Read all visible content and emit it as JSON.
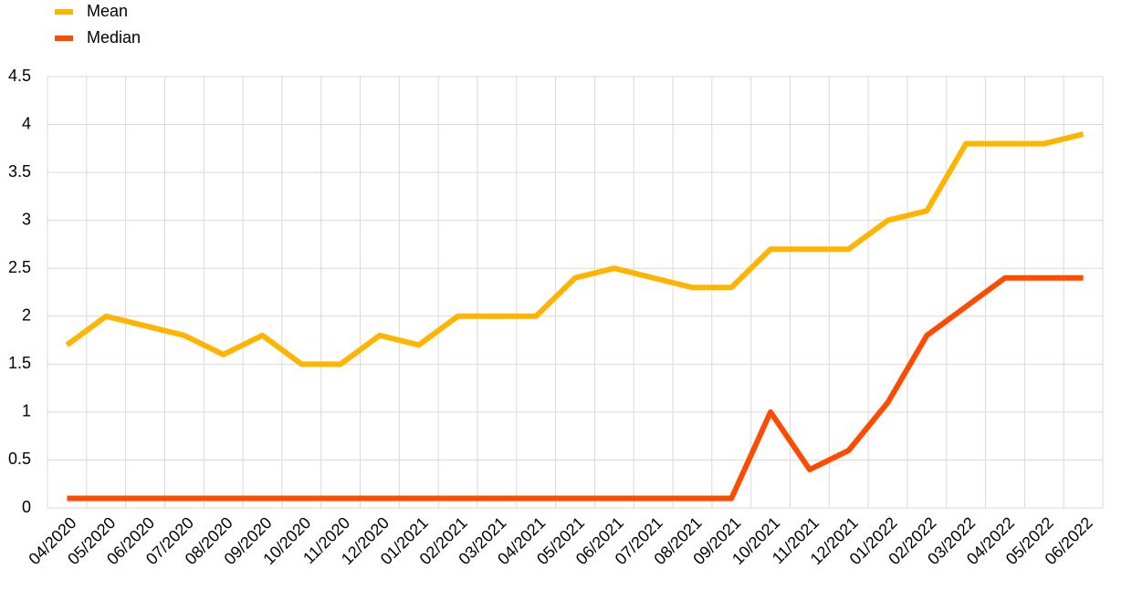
{
  "chart_data": {
    "type": "line",
    "categories": [
      "04/2020",
      "05/2020",
      "06/2020",
      "07/2020",
      "08/2020",
      "09/2020",
      "10/2020",
      "11/2020",
      "12/2020",
      "01/2021",
      "02/2021",
      "03/2021",
      "04/2021",
      "05/2021",
      "06/2021",
      "07/2021",
      "08/2021",
      "09/2021",
      "10/2021",
      "11/2021",
      "12/2021",
      "01/2022",
      "02/2022",
      "03/2022",
      "04/2022",
      "05/2022",
      "06/2022"
    ],
    "series": [
      {
        "name": "Mean",
        "color": "#ffb400",
        "values": [
          1.7,
          2.0,
          1.9,
          1.8,
          1.6,
          1.8,
          1.5,
          1.5,
          1.8,
          1.7,
          2.0,
          2.0,
          2.0,
          2.4,
          2.5,
          2.4,
          2.3,
          2.3,
          2.7,
          2.7,
          2.7,
          3.0,
          3.1,
          3.8,
          3.8,
          3.8,
          3.9
        ]
      },
      {
        "name": "Median",
        "color": "#ff4b00",
        "values": [
          0.1,
          0.1,
          0.1,
          0.1,
          0.1,
          0.1,
          0.1,
          0.1,
          0.1,
          0.1,
          0.1,
          0.1,
          0.1,
          0.1,
          0.1,
          0.1,
          0.1,
          0.1,
          1.0,
          0.4,
          0.6,
          1.1,
          1.8,
          2.1,
          2.4,
          2.4,
          2.4
        ]
      }
    ],
    "ylim": [
      0,
      4.5
    ],
    "yticks": [
      0,
      0.5,
      1,
      1.5,
      2,
      2.5,
      3,
      3.5,
      4,
      4.5
    ],
    "grid": true,
    "legend": "top-left"
  }
}
